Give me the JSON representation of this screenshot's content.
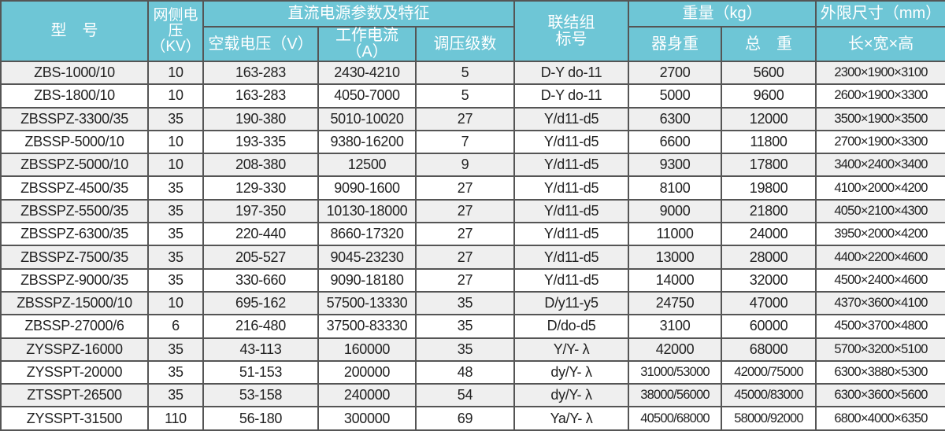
{
  "header": {
    "model": "型　号",
    "grid_voltage": "网侧电压（KV）",
    "dc_params": "直流电源参数及特征",
    "no_load_voltage": "空载电压（V）",
    "working_current": "工作电流（A）",
    "regulation_steps": "调压级数",
    "connection_group": "联结组标号",
    "weight": "重量（kg）",
    "body_weight": "器身重",
    "total_weight": "总　重",
    "outline_size": "外限尺寸（mm）",
    "lwh": "长×宽×高"
  },
  "rows": [
    [
      "ZBS-1000/10",
      "10",
      "163-283",
      "2430-4210",
      "5",
      "D-Y do-11",
      "2700",
      "5600",
      "2300×1900×3100"
    ],
    [
      "ZBS-1800/10",
      "10",
      "163-283",
      "4050-7000",
      "5",
      "D-Y do-11",
      "5000",
      "9600",
      "2600×1900×3300"
    ],
    [
      "ZBSSPZ-3300/35",
      "35",
      "190-380",
      "5010-10020",
      "27",
      "Y/d11-d5",
      "6300",
      "12000",
      "3500×1900×3500"
    ],
    [
      "ZBSSP-5000/10",
      "10",
      "193-335",
      "9380-16200",
      "7",
      "Y/d11-d5",
      "6600",
      "11800",
      "2700×1900×3300"
    ],
    [
      "ZBSSPZ-5000/10",
      "10",
      "208-380",
      "12500",
      "9",
      "Y/d11-d5",
      "9300",
      "17800",
      "3400×2400×3400"
    ],
    [
      "ZBSSPZ-4500/35",
      "35",
      "129-330",
      "9090-1600",
      "27",
      "Y/d11-d5",
      "8100",
      "19800",
      "4100×2000×4200"
    ],
    [
      "ZBSSPZ-5500/35",
      "35",
      "197-350",
      "10130-18000",
      "27",
      "Y/d11-d5",
      "9000",
      "21800",
      "4050×2100×4300"
    ],
    [
      "ZBSSPZ-6300/35",
      "35",
      "220-440",
      "8660-17320",
      "27",
      "Y/d11-d5",
      "11000",
      "24000",
      "3950×2000×4200"
    ],
    [
      "ZBSSPZ-7500/35",
      "35",
      "205-527",
      "9045-23230",
      "27",
      "Y/d11-d5",
      "13000",
      "28000",
      "4400×2200×4600"
    ],
    [
      "ZBSSPZ-9000/35",
      "35",
      "330-660",
      "9090-18180",
      "27",
      "Y/d11-d5",
      "14000",
      "32000",
      "4500×2400×4600"
    ],
    [
      "ZBSSPZ-15000/10",
      "10",
      "695-162",
      "57500-13330",
      "35",
      "D/y11-y5",
      "24750",
      "47000",
      "4370×3600×4100"
    ],
    [
      "ZBSSP-27000/6",
      "6",
      "216-480",
      "37500-83330",
      "35",
      "D/do-d5",
      "3100",
      "60000",
      "4500×3700×4800"
    ],
    [
      "ZYSSPZ-16000",
      "35",
      "43-113",
      "160000",
      "35",
      "Y/Y- λ",
      "42000",
      "68000",
      "5700×3200×5100"
    ],
    [
      "ZYSSPT-20000",
      "35",
      "51-153",
      "200000",
      "48",
      "dy/Y- λ",
      "31000/53000",
      "42000/75000",
      "6300×3880×5300"
    ],
    [
      "ZTSSPT-26500",
      "35",
      "53-158",
      "240000",
      "54",
      "dy/Y- λ",
      "38000/56000",
      "45000/83000",
      "6300×3600×5600"
    ],
    [
      "ZYSSPT-31500",
      "110",
      "56-180",
      "300000",
      "69",
      "Ya/Y- λ",
      "40500/68000",
      "58000/92000",
      "6800×4000×6350"
    ]
  ]
}
